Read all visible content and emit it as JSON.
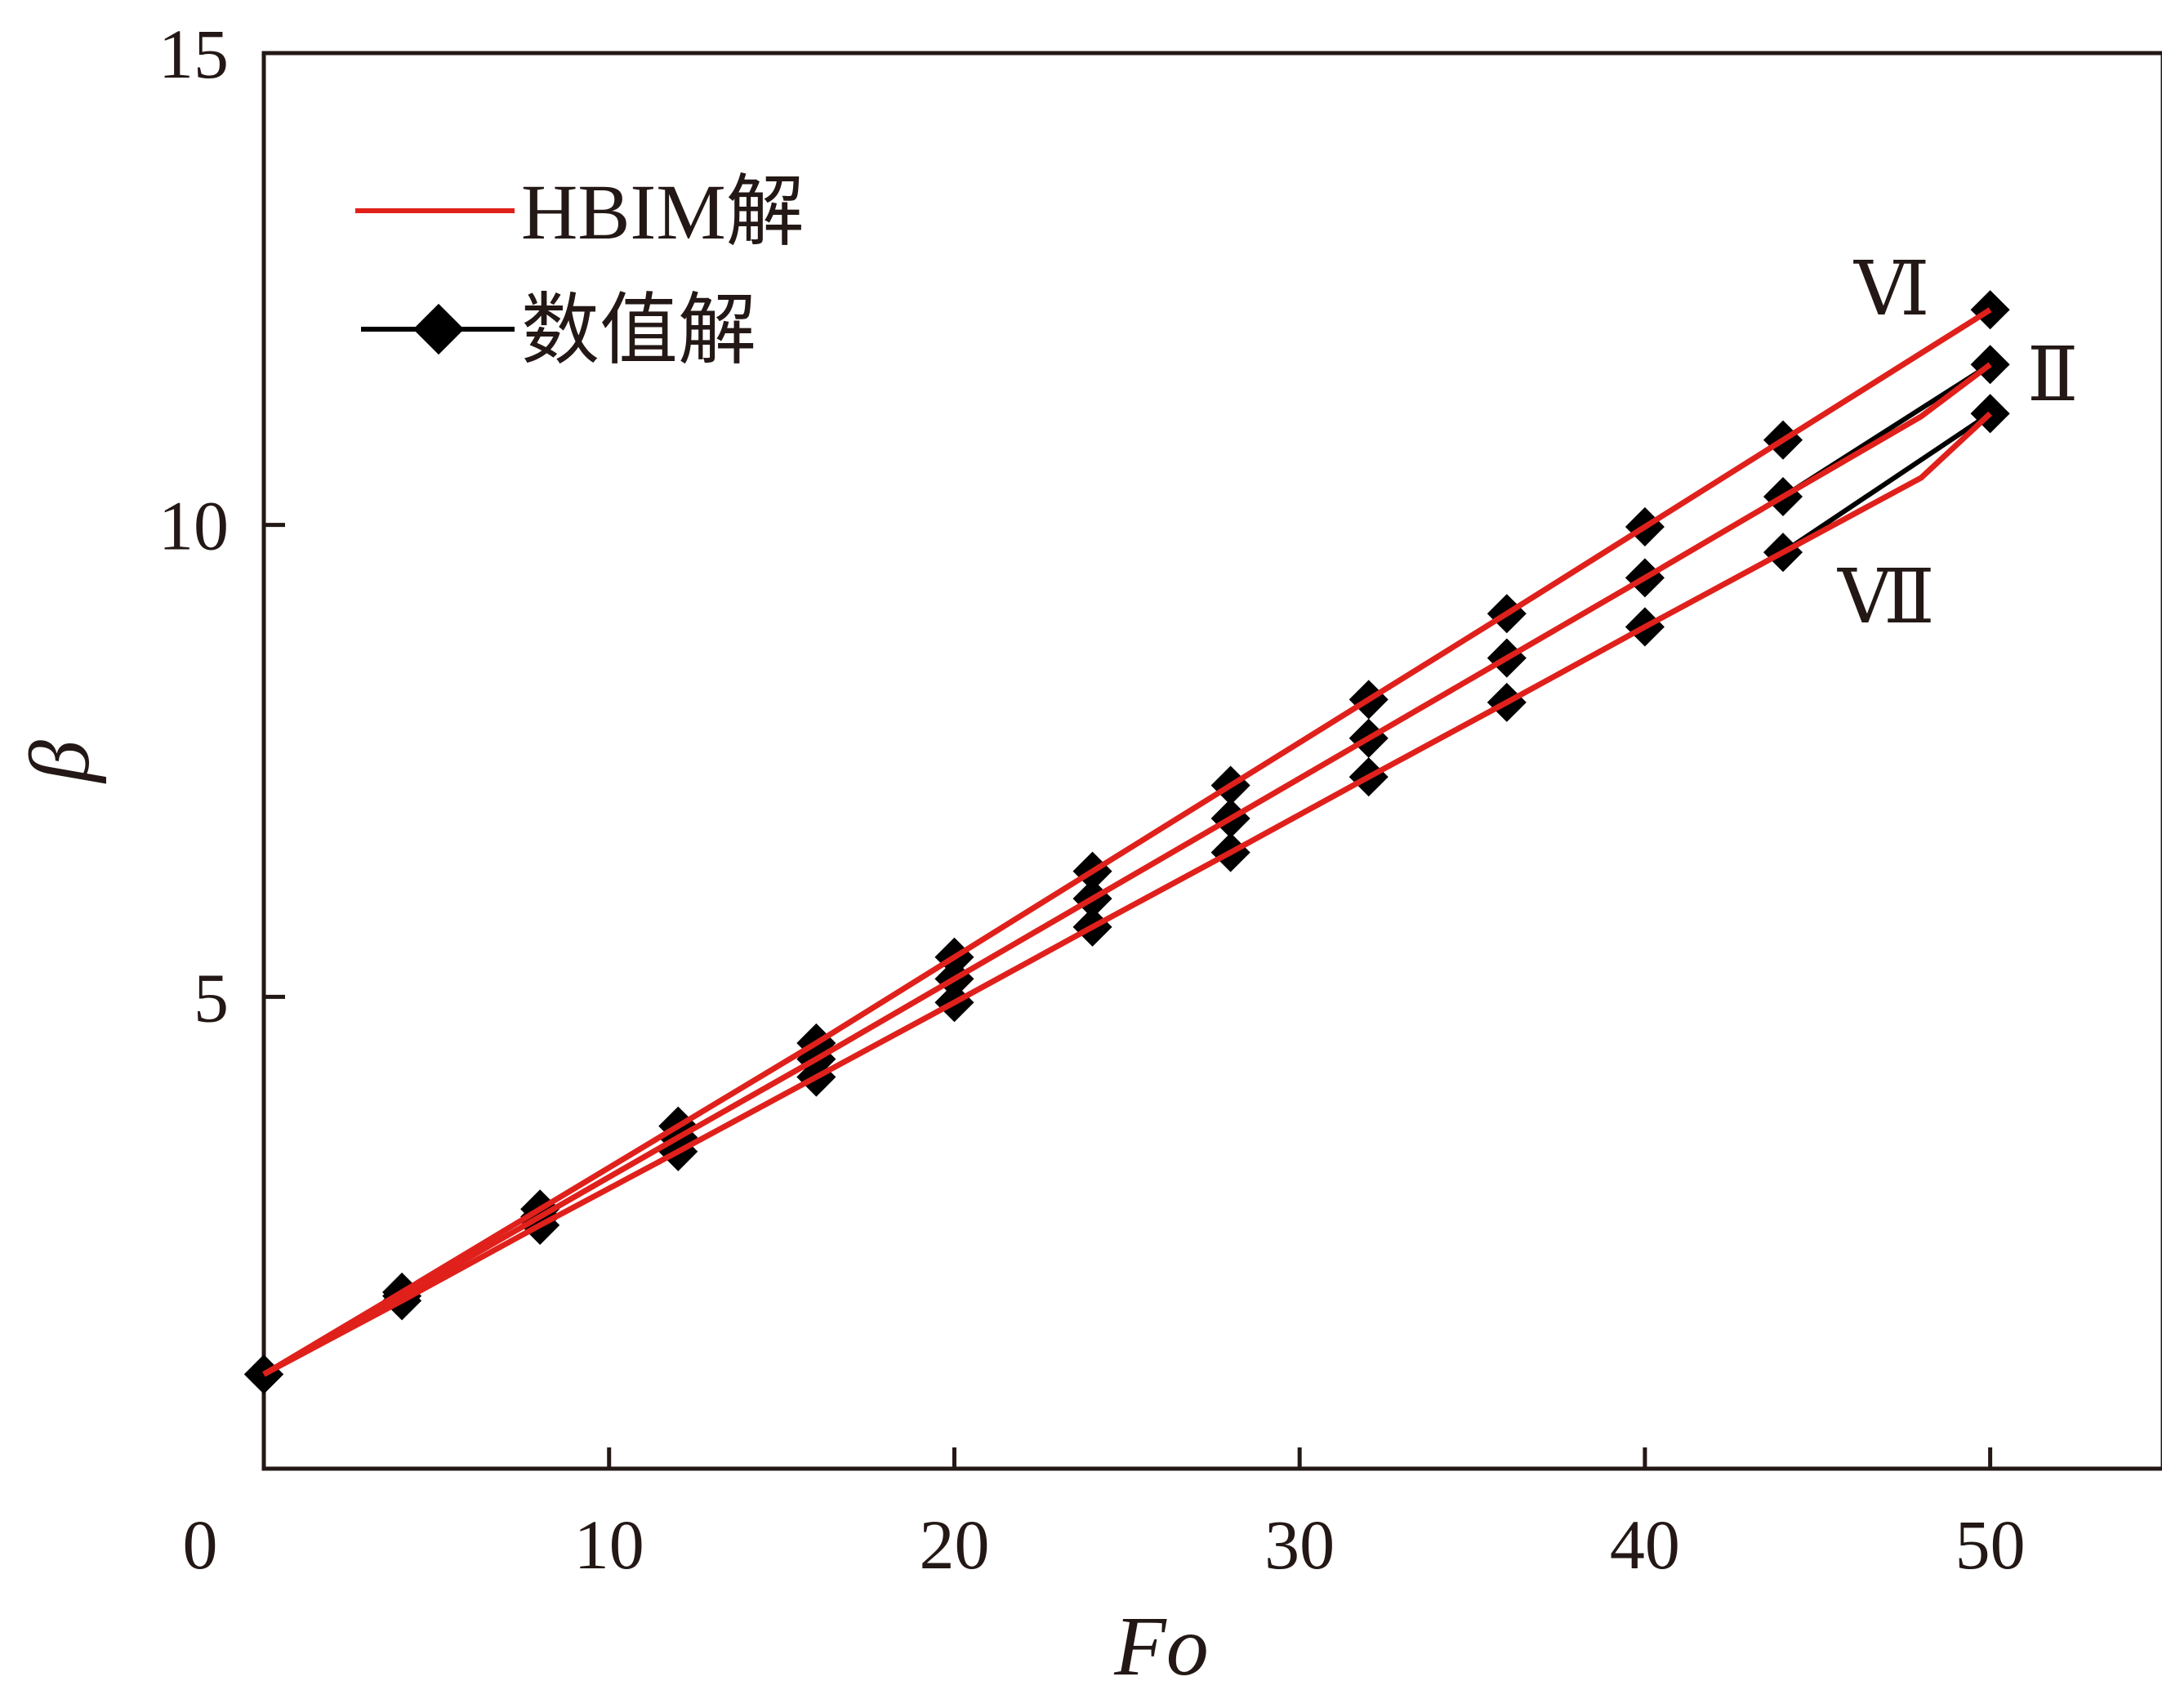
{
  "chart_data": {
    "type": "line",
    "xlabel": "Fo",
    "ylabel": "β",
    "xlim": [
      0,
      55
    ],
    "ylim": [
      0,
      15
    ],
    "x_ticks": [
      0,
      10,
      20,
      30,
      40,
      50
    ],
    "y_ticks": [
      0,
      5,
      10,
      15
    ],
    "legend_position": "top-left",
    "legend": [
      {
        "label": "HBIM解",
        "style": "red-line",
        "color": "#e0201b"
      },
      {
        "label": "数值解",
        "style": "black-line-diamond",
        "color": "#000000"
      }
    ],
    "x": [
      0,
      4,
      8,
      12,
      16,
      20,
      24,
      28,
      32,
      36,
      40,
      44,
      48,
      50
    ],
    "series": [
      {
        "name": "Ⅵ",
        "hbim": [
          1.0,
          1.87,
          2.75,
          3.63,
          4.51,
          5.42,
          6.33,
          7.24,
          8.15,
          9.06,
          9.98,
          10.9,
          11.82,
          12.28
        ],
        "numerical": [
          1.0,
          1.87,
          2.75,
          3.63,
          4.51,
          5.42,
          6.33,
          7.24,
          8.15,
          9.06,
          9.98,
          10.9,
          null,
          12.28
        ]
      },
      {
        "name": "Ⅱ",
        "hbim": [
          1.0,
          1.83,
          2.67,
          3.51,
          4.34,
          5.19,
          6.04,
          6.89,
          7.74,
          8.59,
          9.44,
          10.3,
          11.15,
          11.7
        ],
        "numerical": [
          1.0,
          1.83,
          2.67,
          3.51,
          4.34,
          5.19,
          6.04,
          6.89,
          7.74,
          8.59,
          9.44,
          10.3,
          null,
          11.7
        ]
      },
      {
        "name": "Ⅶ",
        "hbim": [
          1.0,
          1.78,
          2.58,
          3.36,
          4.15,
          4.94,
          5.74,
          6.53,
          7.33,
          8.12,
          8.92,
          9.71,
          10.5,
          11.18
        ],
        "numerical": [
          1.0,
          1.78,
          2.58,
          3.36,
          4.15,
          4.94,
          5.74,
          6.53,
          7.33,
          8.12,
          8.92,
          9.71,
          null,
          11.18
        ]
      }
    ]
  }
}
